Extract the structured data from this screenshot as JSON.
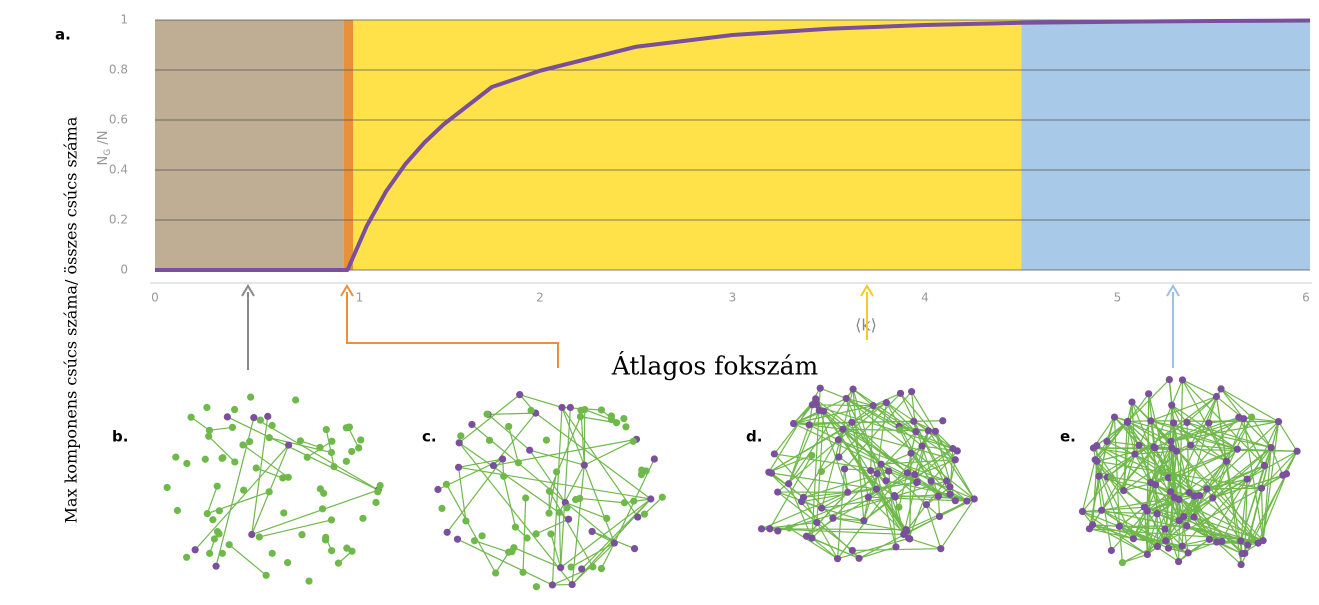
{
  "chart_data": {
    "type": "line",
    "x": [
      0,
      0.5,
      1,
      1.1,
      1.2,
      1.3,
      1.4,
      1.5,
      1.75,
      2,
      2.5,
      3,
      3.5,
      4,
      4.5,
      5,
      5.5,
      6
    ],
    "values": [
      0,
      0,
      0,
      0.176,
      0.314,
      0.423,
      0.51,
      0.583,
      0.732,
      0.797,
      0.893,
      0.94,
      0.965,
      0.98,
      0.989,
      0.993,
      0.996,
      0.998
    ],
    "color": "#7a4f9c",
    "xlim": [
      0,
      6
    ],
    "ylim": [
      0,
      1
    ],
    "xticks": [
      0,
      1,
      2,
      3,
      4,
      5,
      6
    ],
    "yticks": [
      0,
      0.2,
      0.4,
      0.6,
      0.8,
      1
    ],
    "grid": true,
    "regions": [
      {
        "from": 0,
        "to": 0.98,
        "color": "#bfae93"
      },
      {
        "from": 0.98,
        "to": 1.03,
        "color": "#e8903a"
      },
      {
        "from": 1.03,
        "to": 4.5,
        "color": "#ffe24a"
      },
      {
        "from": 4.5,
        "to": 6,
        "color": "#a8c9e8"
      }
    ],
    "ylabel": {
      "base": "N",
      "sub": "G",
      "rest": " /N"
    },
    "xlabel": "⟨k⟩",
    "xlabel_text": "Átlagos fokszám",
    "side_label": "Max komponens  csúcs száma/ összes csúcs száma",
    "panels": [
      "a.",
      "b.",
      "c.",
      "d.",
      "e."
    ]
  }
}
